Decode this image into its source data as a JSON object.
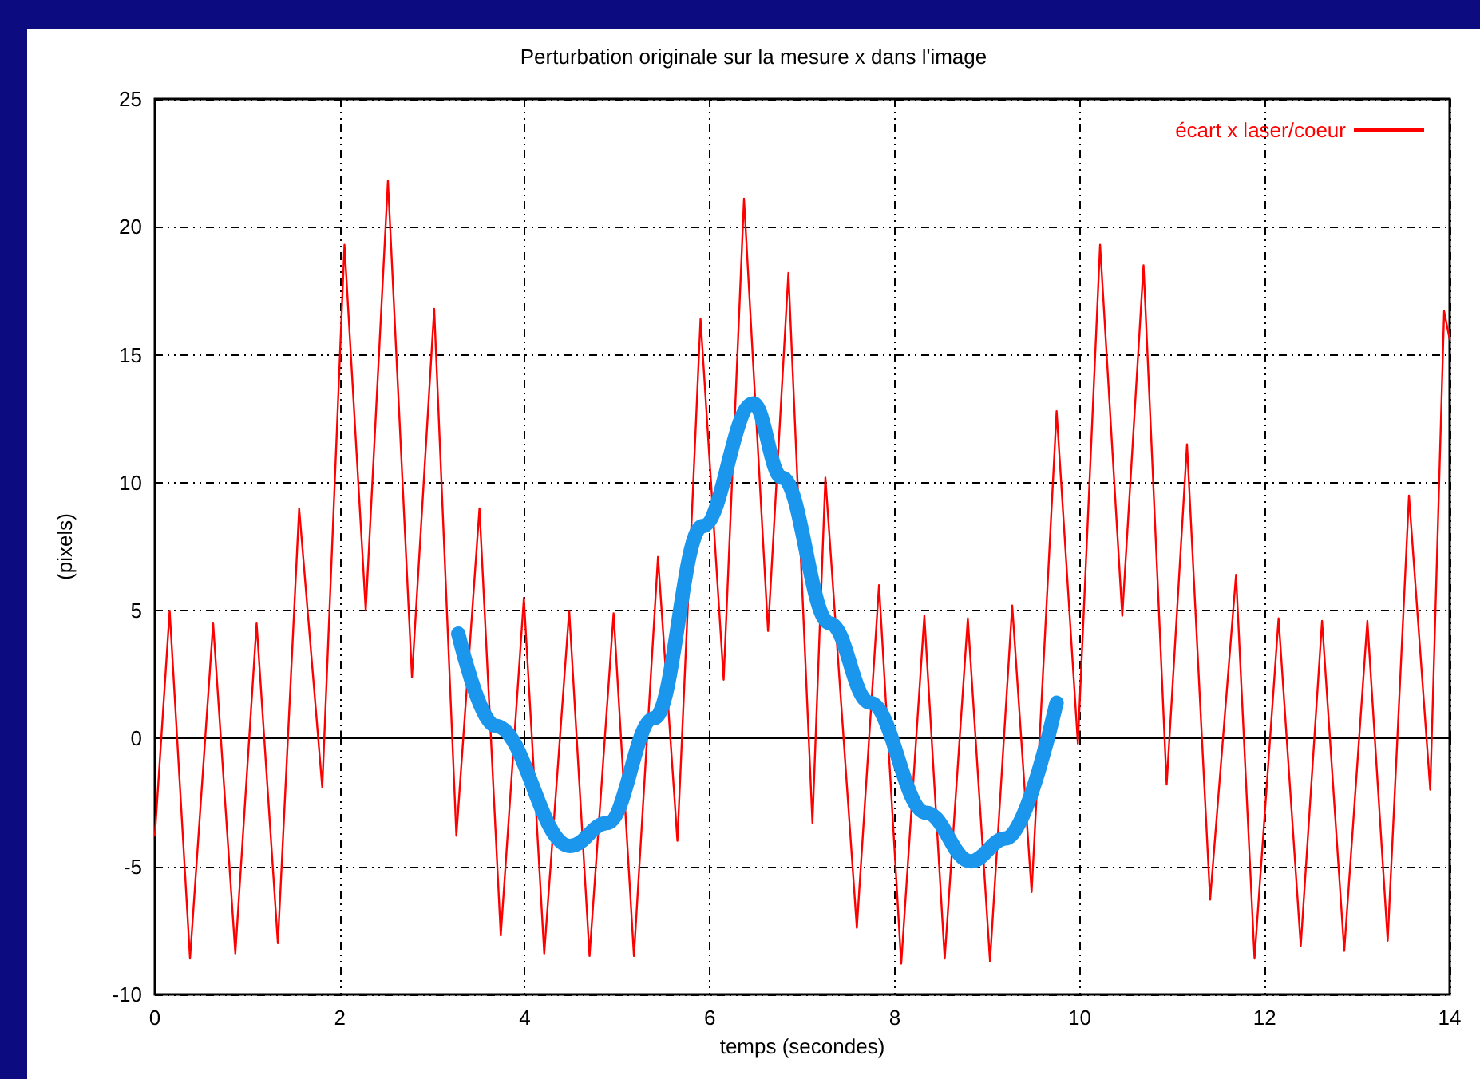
{
  "chart_data": {
    "type": "line",
    "title": "Perturbation originale sur la mesure x dans l'image",
    "xlabel": "temps (secondes)",
    "ylabel": "(pixels)",
    "xlim": [
      0,
      14
    ],
    "xticks": [
      0,
      2,
      4,
      6,
      8,
      10,
      12,
      14
    ],
    "ylim": [
      -10,
      25
    ],
    "yticks": [
      -10,
      -5,
      0,
      5,
      10,
      15,
      20,
      25
    ],
    "grid": true,
    "legend": "top right",
    "marker": "none",
    "series": [
      {
        "name": "écart x laser/coeur",
        "color": "#ff0000",
        "x": [
          0,
          0.16,
          0.38,
          0.63,
          0.87,
          1.1,
          1.33,
          1.56,
          1.81,
          2.05,
          2.28,
          2.52,
          2.78,
          3.02,
          3.26,
          3.51,
          3.74,
          3.99,
          4.21,
          4.48,
          4.7,
          4.96,
          5.18,
          5.44,
          5.65,
          5.9,
          6.15,
          6.37,
          6.63,
          6.85,
          7.11,
          7.25,
          7.59,
          7.83,
          8.07,
          8.32,
          8.54,
          8.79,
          9.03,
          9.27,
          9.48,
          9.75,
          9.98,
          10.22,
          10.46,
          10.69,
          10.94,
          11.16,
          11.41,
          11.69,
          11.89,
          12.15,
          12.39,
          12.62,
          12.86,
          13.11,
          13.33,
          13.56,
          13.79,
          13.94,
          14
        ],
        "values": [
          -3.8,
          5,
          -8.6,
          4.5,
          -8.4,
          4.5,
          -8,
          9,
          -1.9,
          19.3,
          5,
          21.8,
          2.4,
          16.8,
          -3.8,
          9,
          -7.7,
          5.5,
          -8.4,
          5,
          -8.5,
          4.9,
          -8.5,
          7.1,
          -4,
          16.4,
          2.3,
          21.1,
          4.2,
          18.2,
          -3.3,
          10.2,
          -7.4,
          6,
          -8.8,
          4.8,
          -8.6,
          4.7,
          -8.7,
          5.2,
          -6,
          12.8,
          -0.2,
          19.3,
          4.8,
          18.5,
          -1.8,
          11.5,
          -6.3,
          6.4,
          -8.6,
          4.7,
          -8.1,
          4.6,
          -8.3,
          4.6,
          -7.9,
          9.5,
          -2,
          16.7,
          15.6
        ]
      },
      {
        "color": "#1a96ec",
        "x": [
          3.28,
          3.68,
          4.49,
          4.89,
          5.4,
          5.92,
          6.47,
          6.78,
          7.3,
          7.73,
          8.34,
          8.82,
          9.2,
          9.75
        ],
        "values": [
          4.1,
          0.5,
          -4.2,
          -3.3,
          0.8,
          8.3,
          13.1,
          10.2,
          4.5,
          1.4,
          -2.9,
          -4.8,
          -3.9,
          1.4
        ]
      }
    ]
  }
}
